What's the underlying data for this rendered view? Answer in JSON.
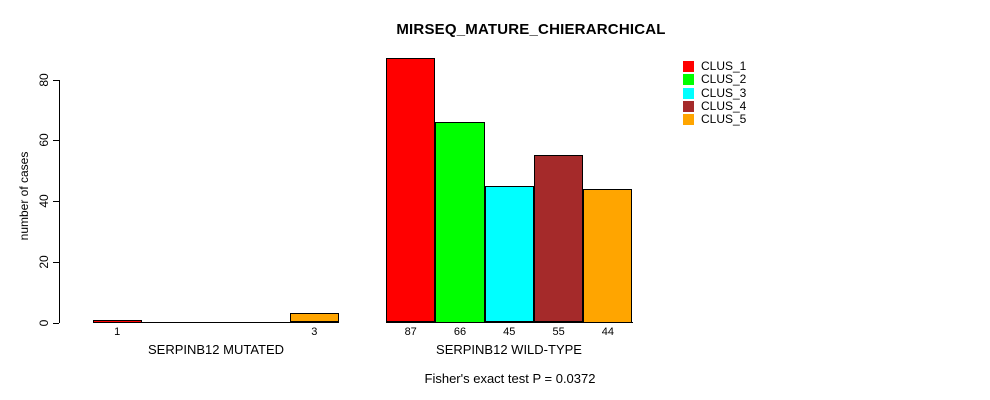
{
  "chart_data": {
    "type": "bar",
    "title": "MIRSEQ_MATURE_CHIERARCHICAL",
    "ylabel": "number of cases",
    "xlabel": "",
    "yticks": [
      0,
      20,
      40,
      60,
      80
    ],
    "ylim": [
      0,
      87
    ],
    "grid": false,
    "legend_position": "top-right",
    "categories": [
      "SERPINB12 MUTATED",
      "SERPINB12 WILD-TYPE"
    ],
    "series": [
      {
        "name": "CLUS_1",
        "color": "#FF0000",
        "values": [
          1,
          87
        ]
      },
      {
        "name": "CLUS_2",
        "color": "#00FF00",
        "values": [
          0,
          66
        ]
      },
      {
        "name": "CLUS_3",
        "color": "#00FFFF",
        "values": [
          0,
          45
        ]
      },
      {
        "name": "CLUS_4",
        "color": "#A52A2A",
        "values": [
          0,
          55
        ]
      },
      {
        "name": "CLUS_5",
        "color": "#FFA500",
        "values": [
          3,
          44
        ]
      }
    ],
    "bar_value_label_rule": "values shown under each drawn bar; zero-height bars unlabeled",
    "annotation": "Fisher's exact test P = 0.0372"
  }
}
